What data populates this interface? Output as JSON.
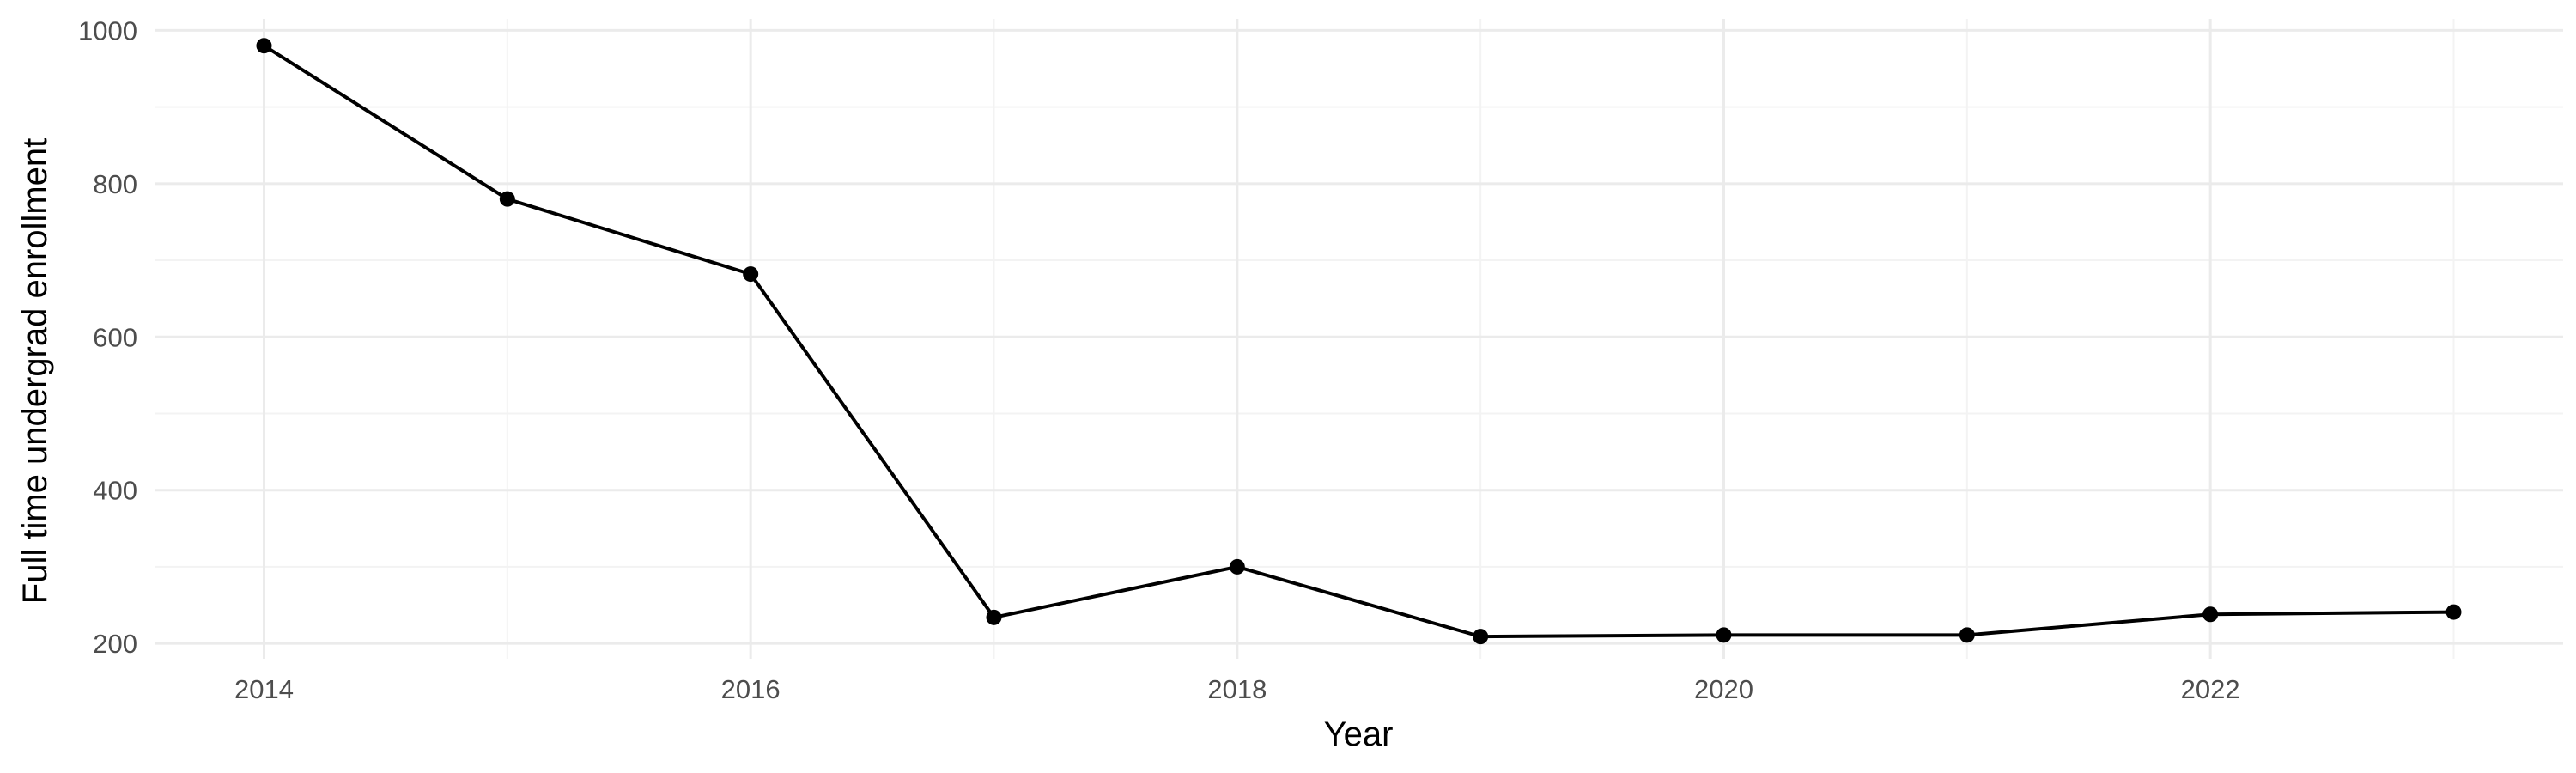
{
  "chart_data": {
    "type": "line",
    "title": "",
    "xlabel": "Year",
    "ylabel": "Full time undergrad enrollment",
    "x": [
      2014,
      2015,
      2016,
      2017,
      2018,
      2019,
      2020,
      2021,
      2022,
      2023
    ],
    "series": [
      {
        "values": [
          980,
          780,
          682,
          234,
          300,
          209,
          211,
          211,
          238,
          241
        ]
      }
    ],
    "xlim": [
      2013.55,
      2023.45
    ],
    "ylim": [
      180,
      1015
    ],
    "x_ticks": [
      2014,
      2016,
      2018,
      2020,
      2022
    ],
    "x_tick_labels": [
      "2014",
      "2016",
      "2018",
      "2020",
      "2022"
    ],
    "y_ticks": [
      200,
      400,
      600,
      800,
      1000
    ],
    "y_tick_labels": [
      "200",
      "400",
      "600",
      "800",
      "1000"
    ],
    "grid": true,
    "legend": "none",
    "colors": {
      "line": "#000000",
      "point": "#000000",
      "grid_major": "#ebebeb",
      "grid_minor": "#f3f3f3",
      "tick_text": "#4d4d4d",
      "background": "#ffffff"
    }
  }
}
